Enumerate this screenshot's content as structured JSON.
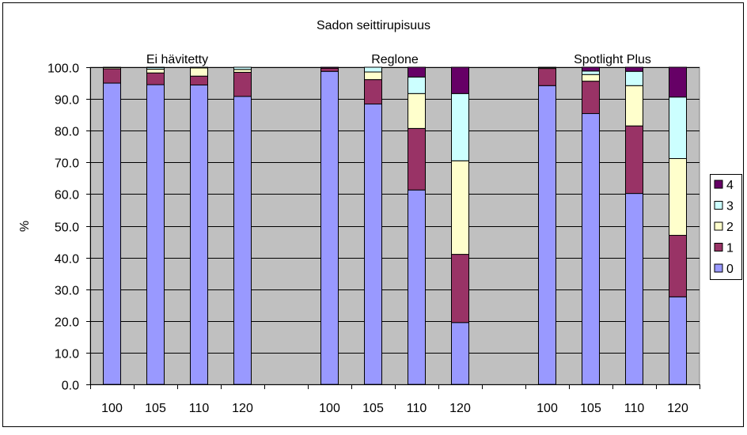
{
  "chart_data": {
    "type": "bar",
    "stacked": true,
    "title": "Sadon seittirupisuus",
    "xlabel": "",
    "ylabel": "%",
    "ylim": [
      0,
      100
    ],
    "yticks": [
      "0.0",
      "10.0",
      "20.0",
      "30.0",
      "40.0",
      "50.0",
      "60.0",
      "70.0",
      "80.0",
      "90.0",
      "100.0"
    ],
    "grid": true,
    "legend_position": "right",
    "groups": [
      {
        "label": "Ei hävitetty",
        "categories": [
          "100",
          "105",
          "110",
          "120"
        ]
      },
      {
        "label": "Reglone",
        "categories": [
          "100",
          "105",
          "110",
          "120"
        ]
      },
      {
        "label": "Spotlight Plus",
        "categories": [
          "100",
          "105",
          "110",
          "120"
        ]
      }
    ],
    "series": [
      {
        "name": "0",
        "color": "#9999FF",
        "values": [
          [
            95.0,
            94.5,
            94.4,
            90.8
          ],
          [
            98.7,
            88.4,
            61.3,
            19.5
          ],
          [
            94.2,
            85.4,
            60.2,
            27.6
          ]
        ]
      },
      {
        "name": "1",
        "color": "#993366",
        "values": [
          [
            4.5,
            3.7,
            2.8,
            7.6
          ],
          [
            1.0,
            7.7,
            19.4,
            21.5
          ],
          [
            5.4,
            10.2,
            21.3,
            19.4
          ]
        ]
      },
      {
        "name": "2",
        "color": "#FFFFCC",
        "values": [
          [
            0.4,
            1.2,
            2.6,
            0.9
          ],
          [
            0.0,
            2.4,
            11.0,
            29.5
          ],
          [
            0.3,
            2.1,
            12.7,
            24.2
          ]
        ]
      },
      {
        "name": "3",
        "color": "#CCFFFF",
        "values": [
          [
            0.1,
            0.5,
            0.2,
            0.7
          ],
          [
            0.0,
            1.5,
            5.2,
            21.2
          ],
          [
            0.1,
            1.1,
            4.5,
            19.4
          ]
        ]
      },
      {
        "name": "4",
        "color": "#660066",
        "values": [
          [
            0.0,
            0.1,
            0.0,
            0.0
          ],
          [
            0.3,
            0.0,
            3.1,
            8.3
          ],
          [
            0.0,
            1.2,
            1.3,
            9.4
          ]
        ]
      }
    ]
  }
}
